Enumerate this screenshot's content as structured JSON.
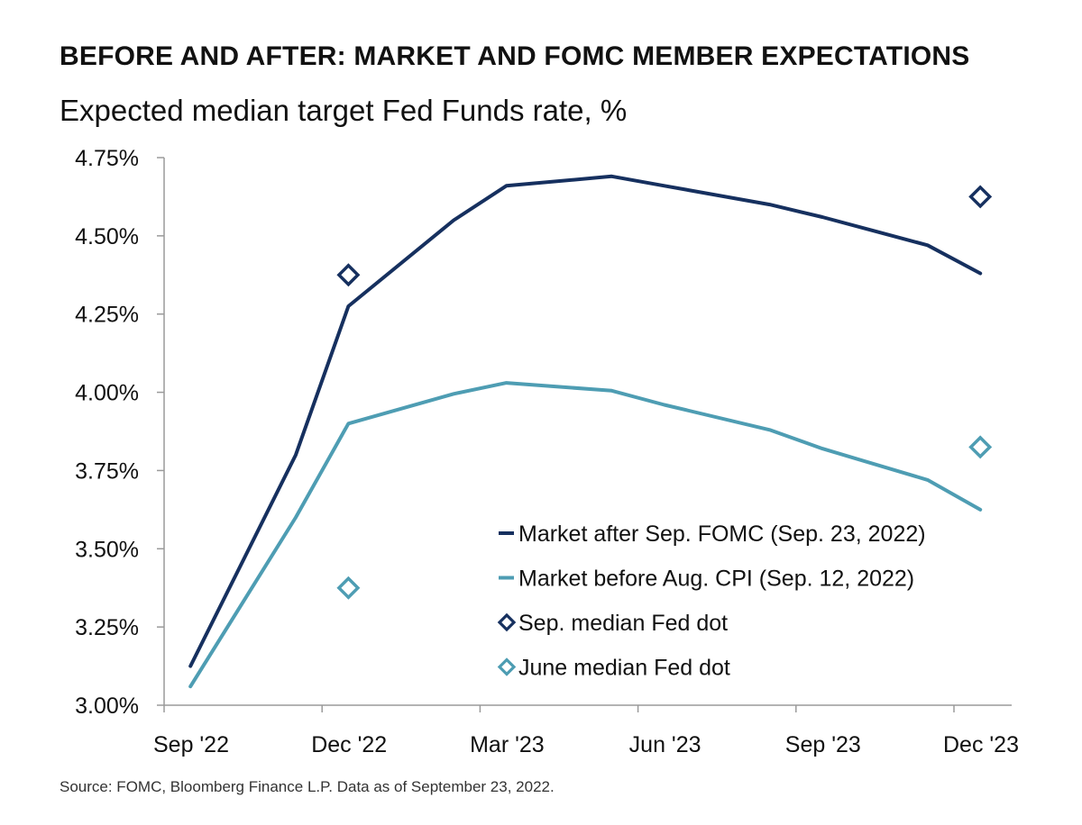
{
  "header": {
    "title": "BEFORE AND AFTER: MARKET AND FOMC MEMBER EXPECTATIONS",
    "subtitle": "Expected median target Fed Funds rate, %"
  },
  "footer": {
    "source": "Source: FOMC, Bloomberg Finance L.P. Data as of September 23, 2022."
  },
  "chart_data": {
    "type": "line",
    "title": "BEFORE AND AFTER: MARKET AND FOMC MEMBER EXPECTATIONS",
    "subtitle": "Expected median target Fed Funds rate, %",
    "x_categories": [
      "Sep '22",
      "Dec '22",
      "Mar '23",
      "Jun '23",
      "Sep '23",
      "Dec '23"
    ],
    "xlim": [
      0,
      15.5
    ],
    "ylim": [
      3.0,
      4.75
    ],
    "y_ticks": [
      {
        "value": 3.0,
        "label": "3.00%"
      },
      {
        "value": 3.25,
        "label": "3.25%"
      },
      {
        "value": 3.5,
        "label": "3.50%"
      },
      {
        "value": 3.75,
        "label": "3.75%"
      },
      {
        "value": 4.0,
        "label": "4.00%"
      },
      {
        "value": 4.25,
        "label": "4.25%"
      },
      {
        "value": 4.5,
        "label": "4.50%"
      },
      {
        "value": 4.75,
        "label": "4.75%"
      }
    ],
    "x_ticks": [
      {
        "value": 0,
        "label": "Sep '22"
      },
      {
        "value": 3,
        "label": "Dec '22"
      },
      {
        "value": 6,
        "label": "Mar '23"
      },
      {
        "value": 9,
        "label": "Jun '23"
      },
      {
        "value": 12,
        "label": "Sep '23"
      },
      {
        "value": 15,
        "label": "Dec '23"
      }
    ],
    "grid": false,
    "legend_position": "bottom-right",
    "series": [
      {
        "name": "Market after Sep. FOMC (Sep. 23, 2022)",
        "kind": "line",
        "color": "#16305f",
        "points": [
          [
            0.5,
            3.125
          ],
          [
            2.5,
            3.8
          ],
          [
            3.5,
            4.275
          ],
          [
            5.5,
            4.55
          ],
          [
            6.5,
            4.66
          ],
          [
            8.5,
            4.69
          ],
          [
            9.5,
            4.66
          ],
          [
            11.5,
            4.6
          ],
          [
            12.5,
            4.56
          ],
          [
            14.5,
            4.47
          ],
          [
            15.5,
            4.38
          ]
        ]
      },
      {
        "name": "Market before Aug. CPI (Sep. 12, 2022)",
        "kind": "line",
        "color": "#4e9db3",
        "points": [
          [
            0.5,
            3.06
          ],
          [
            2.5,
            3.6
          ],
          [
            3.5,
            3.9
          ],
          [
            5.5,
            3.995
          ],
          [
            6.5,
            4.03
          ],
          [
            8.5,
            4.005
          ],
          [
            9.5,
            3.96
          ],
          [
            11.5,
            3.88
          ],
          [
            12.5,
            3.82
          ],
          [
            14.5,
            3.72
          ],
          [
            15.5,
            3.625
          ]
        ]
      },
      {
        "name": "Sep. median Fed dot",
        "kind": "marker",
        "color": "#16305f",
        "points": [
          [
            3.5,
            4.375
          ],
          [
            15.5,
            4.625
          ]
        ]
      },
      {
        "name": "June median Fed dot",
        "kind": "marker",
        "color": "#4e9db3",
        "points": [
          [
            3.5,
            3.375
          ],
          [
            15.5,
            3.825
          ]
        ]
      }
    ]
  }
}
